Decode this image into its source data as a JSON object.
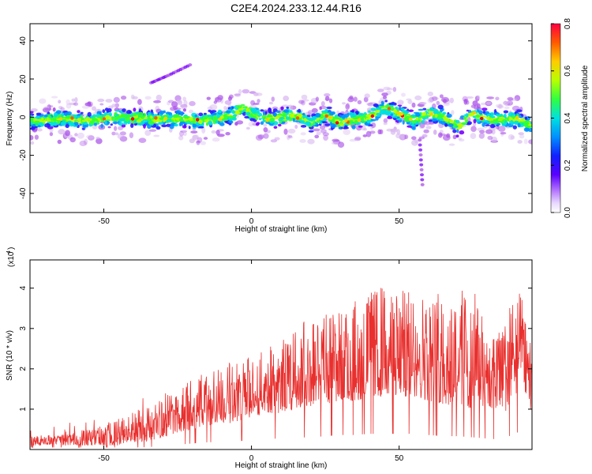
{
  "title": "C2E4.2024.233.12.44.R16",
  "colors": {
    "snr_line": "#e8302e",
    "axis": "#000000",
    "colormap": [
      "#ffffff",
      "#d8b8f0",
      "#a84ee8",
      "#7a00ff",
      "#2b1aff",
      "#0090ff",
      "#00e0e0",
      "#33ff33",
      "#b8ff00",
      "#ffcc00",
      "#ff5a00",
      "#ff0000"
    ]
  },
  "chart_data": [
    {
      "type": "heatmap",
      "title": "",
      "xlabel": "Height of straight line (km)",
      "ylabel": "Frequency (Hz)",
      "xlim": [
        -75,
        95
      ],
      "ylim": [
        -50,
        49
      ],
      "xticks": [
        -50,
        0,
        50
      ],
      "yticks": [
        -40,
        -20,
        0,
        20,
        40
      ],
      "colorbar": {
        "label": "Normalized spectral amplitude",
        "range": [
          0,
          0.8
        ],
        "ticks": [
          "0.0",
          "0.2",
          "0.4",
          "0.6",
          "0.8"
        ]
      },
      "band_center_hz": [
        {
          "x": -75,
          "f": -2
        },
        {
          "x": -65,
          "f": -1
        },
        {
          "x": -55,
          "f": -2
        },
        {
          "x": -45,
          "f": 0
        },
        {
          "x": -35,
          "f": -1
        },
        {
          "x": -25,
          "f": -1
        },
        {
          "x": -15,
          "f": -2
        },
        {
          "x": -5,
          "f": 2
        },
        {
          "x": -3,
          "f": 6
        },
        {
          "x": 0,
          "f": 2
        },
        {
          "x": 5,
          "f": -1
        },
        {
          "x": 10,
          "f": 0
        },
        {
          "x": 15,
          "f": 1
        },
        {
          "x": 20,
          "f": -3
        },
        {
          "x": 25,
          "f": 1
        },
        {
          "x": 30,
          "f": -3
        },
        {
          "x": 35,
          "f": -1
        },
        {
          "x": 40,
          "f": 0
        },
        {
          "x": 45,
          "f": 5
        },
        {
          "x": 50,
          "f": 2
        },
        {
          "x": 55,
          "f": -2
        },
        {
          "x": 60,
          "f": 2
        },
        {
          "x": 65,
          "f": 0
        },
        {
          "x": 70,
          "f": -5
        },
        {
          "x": 75,
          "f": 2
        },
        {
          "x": 80,
          "f": -1
        },
        {
          "x": 85,
          "f": -1
        },
        {
          "x": 90,
          "f": -1
        },
        {
          "x": 95,
          "f": -5
        }
      ],
      "band_halfwidth_hz": 6,
      "features": [
        {
          "name": "upper-trace",
          "x": [
            -34,
            -28,
            -20
          ],
          "f": [
            18,
            22,
            28
          ]
        },
        {
          "name": "lower-streak",
          "x": [
            57,
            58
          ],
          "f": [
            -12,
            -38
          ]
        }
      ]
    },
    {
      "type": "line",
      "title": "",
      "xlabel": "Height of straight line (km)",
      "ylabel": "SNR (10 * v/v)",
      "y_multiplier": "(x10",
      "y_multiplier_exp": "4",
      "xlim": [
        -75,
        95
      ],
      "ylim": [
        0,
        4.7
      ],
      "xticks": [
        -50,
        0,
        50
      ],
      "yticks": [
        1,
        2,
        3,
        4
      ],
      "envelope": {
        "x": [
          -75,
          -65,
          -55,
          -45,
          -35,
          -30,
          -25,
          -20,
          -15,
          -10,
          -5,
          0,
          5,
          10,
          15,
          20,
          25,
          30,
          35,
          40,
          45,
          50,
          55,
          60,
          65,
          70,
          75,
          80,
          85,
          88,
          92,
          95
        ],
        "lo": [
          0.1,
          0.1,
          0.1,
          0.1,
          0.2,
          0.3,
          0.4,
          0.5,
          0.6,
          0.6,
          0.7,
          0.8,
          0.9,
          0.9,
          1.0,
          1.0,
          1.1,
          1.2,
          1.2,
          1.3,
          1.3,
          1.3,
          1.3,
          1.2,
          1.1,
          1.1,
          1.0,
          0.9,
          0.8,
          1.2,
          1.6,
          0.8
        ],
        "hi": [
          0.35,
          0.35,
          0.5,
          0.8,
          1.1,
          1.3,
          1.5,
          1.8,
          1.9,
          2.1,
          2.2,
          2.3,
          2.5,
          2.7,
          3.0,
          3.3,
          3.4,
          3.5,
          3.7,
          3.9,
          4.1,
          4.0,
          3.9,
          3.9,
          3.9,
          4.1,
          3.7,
          3.3,
          3.0,
          3.8,
          3.9,
          2.6
        ]
      }
    }
  ]
}
